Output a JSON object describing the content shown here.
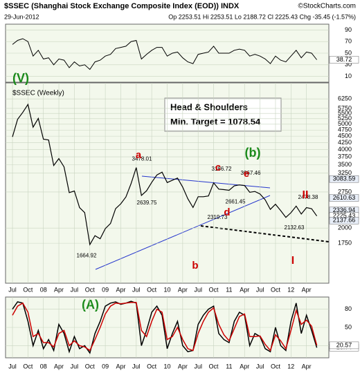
{
  "chart_data": [
    {
      "type": "line",
      "title": "$SSEC (Shanghai Stock Exchange Composite Index (EOD)) INDX",
      "subtitle": "29-Jun-2012",
      "stats": "Op 2253.51 Hi 2253.51 Lo 2188.72 Cl 2225.43 Chg -35.45 (-1.57%)",
      "credit": "©StockCharts.com",
      "color": "#000000",
      "ylim": [
        0,
        100
      ],
      "yticks": [
        10,
        30,
        50,
        70,
        90
      ],
      "grid": true,
      "values": [
        65,
        72,
        75,
        70,
        45,
        55,
        40,
        42,
        30,
        40,
        38,
        25,
        35,
        28,
        30,
        22,
        35,
        38,
        45,
        48,
        58,
        60,
        62,
        70,
        72,
        40,
        48,
        55,
        60,
        60,
        45,
        50,
        52,
        42,
        35,
        32,
        48,
        50,
        52,
        62,
        50,
        50,
        50,
        55,
        57,
        55,
        45,
        48,
        45,
        40,
        32,
        45,
        38,
        35,
        45,
        55,
        42,
        52,
        50,
        38.72
      ]
    },
    {
      "type": "line",
      "label": "$SSEC (Weekly)",
      "log": true,
      "color": "#000000",
      "ylim": [
        1230,
        7200
      ],
      "yticks": [
        1750,
        2000,
        2750,
        3250,
        3500,
        3750,
        4000,
        4250,
        4500,
        4750,
        5000,
        5250,
        5500,
        5750,
        6250
      ],
      "grid": true,
      "categories": [
        "Jul",
        null,
        null,
        "Oct",
        null,
        null,
        "08",
        null,
        null,
        "Apr",
        null,
        null,
        "Jul",
        null,
        null,
        "Oct",
        null,
        null,
        "09",
        null,
        null,
        "Apr",
        null,
        null,
        "Jul",
        null,
        null,
        "Oct",
        null,
        null,
        "10",
        null,
        null,
        "Apr",
        null,
        null,
        "Jul",
        null,
        null,
        "Oct",
        null,
        null,
        "11",
        null,
        null,
        "Apr",
        null,
        null,
        "Jul",
        null,
        null,
        "Oct",
        null,
        null,
        "12",
        null,
        null,
        "Apr",
        null,
        null
      ],
      "values": [
        4471,
        5219,
        5552,
        5955,
        4871,
        5262,
        4383,
        4349,
        3473,
        3693,
        3433,
        2736,
        2775,
        2397,
        2293,
        1729,
        1871,
        1821,
        1991,
        2082,
        2374,
        2478,
        2633,
        2959,
        3412,
        2667,
        2779,
        2996,
        3195,
        3277,
        2989,
        3051,
        3110,
        2871,
        2592,
        2398,
        2638,
        2638,
        2656,
        2979,
        2820,
        2808,
        2791,
        2905,
        2928,
        2911,
        2743,
        2762,
        2701,
        2567,
        2359,
        2468,
        2333,
        2199,
        2292,
        2428,
        2263,
        2396,
        2372,
        2225.43
      ],
      "level_labels": [
        1664.92,
        3478.01,
        2639.75,
        3186.72,
        2661.45,
        3067.46,
        2319.73,
        2132.63,
        2478.38
      ],
      "wave_labels": [
        "(V)",
        "a",
        "b",
        "c",
        "d",
        "e",
        "(b)",
        "I",
        "II"
      ],
      "right_labels": [
        3083.59,
        2610.63,
        2336.94,
        2225.43,
        2137.66
      ],
      "callout": [
        "Head & Shoulders",
        "Min. Target = 1078.54"
      ]
    },
    {
      "type": "line",
      "label": "(A)",
      "ylim": [
        0,
        100
      ],
      "yticks": [
        20,
        50,
        80
      ],
      "grid": true,
      "categories": [
        "Jul",
        null,
        null,
        "Oct",
        null,
        null,
        "08",
        null,
        null,
        "Apr",
        null,
        null,
        "Jul",
        null,
        null,
        "Oct",
        null,
        null,
        "09",
        null,
        null,
        "Apr",
        null,
        null,
        "Jul",
        null,
        null,
        "Oct",
        null,
        null,
        "10",
        null,
        null,
        "Apr",
        null,
        null,
        "Jul",
        null,
        null,
        "Oct",
        null,
        null,
        "11",
        null,
        null,
        "Apr",
        null,
        null,
        "Jul",
        null,
        null,
        "Oct",
        null,
        null,
        "12",
        null,
        null,
        "Apr",
        null,
        null
      ],
      "series": [
        {
          "color": "#000000",
          "values": [
            80,
            92,
            90,
            60,
            20,
            45,
            15,
            30,
            12,
            55,
            40,
            10,
            35,
            15,
            20,
            8,
            40,
            60,
            85,
            90,
            92,
            88,
            90,
            93,
            90,
            20,
            45,
            75,
            85,
            70,
            15,
            40,
            60,
            20,
            10,
            12,
            55,
            70,
            80,
            85,
            40,
            30,
            25,
            60,
            75,
            70,
            20,
            40,
            35,
            15,
            10,
            50,
            20,
            12,
            60,
            90,
            40,
            70,
            45,
            16.74
          ]
        },
        {
          "color": "#cc0000",
          "values": [
            70,
            85,
            90,
            75,
            35,
            40,
            25,
            25,
            18,
            40,
            45,
            20,
            28,
            20,
            18,
            12,
            30,
            50,
            72,
            85,
            90,
            89,
            90,
            91,
            91,
            45,
            35,
            60,
            80,
            75,
            30,
            35,
            50,
            30,
            15,
            12,
            40,
            60,
            75,
            82,
            55,
            38,
            28,
            48,
            68,
            72,
            35,
            35,
            36,
            22,
            12,
            38,
            28,
            15,
            45,
            78,
            55,
            62,
            52,
            20.57
          ]
        }
      ]
    }
  ]
}
